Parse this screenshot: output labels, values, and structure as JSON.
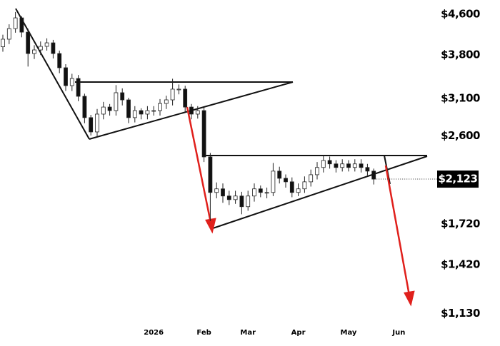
{
  "chart_data": {
    "type": "candlestick",
    "categories": [
      null,
      null,
      null,
      null,
      null,
      null,
      null,
      null,
      null,
      null,
      null,
      null,
      null,
      null,
      null,
      null,
      null,
      null,
      null,
      null,
      null,
      null,
      null,
      null,
      "2026",
      null,
      null,
      null,
      null,
      null,
      null,
      null,
      "Feb",
      null,
      null,
      null,
      null,
      null,
      null,
      "Mar",
      null,
      null,
      null,
      null,
      null,
      null,
      null,
      "Apr",
      null,
      null,
      null,
      null,
      null,
      null,
      null,
      "May",
      null,
      null,
      null,
      null,
      null,
      null,
      null,
      "Jun"
    ],
    "open": [
      3950,
      4093,
      4302,
      4524,
      4231,
      3827,
      3892,
      3958,
      4024,
      3827,
      3580,
      3292,
      3404,
      3131,
      2833,
      2649,
      2880,
      2977,
      2928,
      3184,
      3079,
      2833,
      2928,
      2880,
      2928,
      2928,
      3028,
      3079,
      3238,
      3238,
      2977,
      2880,
      2928,
      2356,
      1994,
      2028,
      1961,
      1928,
      1961,
      1865,
      1961,
      2028,
      1994,
      1994,
      2204,
      2131,
      2096,
      1994,
      2028,
      2096,
      2167,
      2242,
      2317,
      2280,
      2242,
      2280,
      2242,
      2280,
      2242,
      2204,
      null,
      null,
      null,
      null
    ],
    "high": [
      4180,
      4390,
      4650,
      4560,
      4300,
      3980,
      4050,
      4110,
      4080,
      3880,
      3640,
      3480,
      3460,
      3170,
      2870,
      2950,
      3050,
      3020,
      3300,
      3250,
      3110,
      2990,
      2960,
      2990,
      2990,
      3090,
      3140,
      3400,
      3310,
      3290,
      3020,
      2990,
      2970,
      2400,
      2090,
      2080,
      2010,
      2010,
      2000,
      2010,
      2080,
      2060,
      2040,
      2290,
      2250,
      2170,
      2140,
      2080,
      2150,
      2220,
      2300,
      2370,
      2360,
      2320,
      2330,
      2320,
      2330,
      2330,
      2280,
      2230,
      null,
      null,
      null,
      null
    ],
    "low": [
      3860,
      4000,
      4220,
      4130,
      3600,
      3730,
      3800,
      3880,
      3740,
      3490,
      3210,
      3210,
      3060,
      2760,
      2605,
      2590,
      2810,
      2860,
      2860,
      3000,
      2760,
      2770,
      2810,
      2810,
      2860,
      2860,
      2950,
      3000,
      3160,
      2900,
      2810,
      2820,
      2300,
      1744,
      1940,
      1900,
      1880,
      1890,
      1800,
      1830,
      1910,
      1950,
      1940,
      1960,
      2080,
      2040,
      1950,
      1960,
      1990,
      2050,
      2120,
      2190,
      2230,
      2190,
      2200,
      2200,
      2200,
      2190,
      2160,
      2070,
      null,
      null,
      null,
      null
    ],
    "close": [
      4093,
      4302,
      4524,
      4231,
      3827,
      3892,
      3958,
      4024,
      3827,
      3580,
      3292,
      3404,
      3131,
      2833,
      2649,
      2880,
      2977,
      2928,
      3184,
      3079,
      2833,
      2928,
      2880,
      2928,
      2928,
      3028,
      3079,
      3238,
      3238,
      2977,
      2880,
      2928,
      2356,
      1994,
      2028,
      1961,
      1928,
      1961,
      1865,
      1961,
      2028,
      1994,
      1994,
      2204,
      2131,
      2096,
      1994,
      2028,
      2096,
      2167,
      2242,
      2317,
      2280,
      2242,
      2280,
      2242,
      2280,
      2242,
      2204,
      2123,
      null,
      null,
      null,
      null
    ],
    "ylim": [
      1020,
      4920
    ],
    "log_scale": true,
    "yticks": [
      {
        "value": 4600,
        "label": "$4,600"
      },
      {
        "value": 3800,
        "label": "$3,800"
      },
      {
        "value": 3100,
        "label": "$3,100"
      },
      {
        "value": 2600,
        "label": "$2,600"
      },
      {
        "value": 1720,
        "label": "$1,720"
      },
      {
        "value": 1420,
        "label": "$1,420"
      },
      {
        "value": 1130,
        "label": "$1,130"
      }
    ],
    "current_price": {
      "value": 2123,
      "label": "$2,123"
    },
    "up_color": "#ffffff",
    "down_color": "#111111"
  }
}
